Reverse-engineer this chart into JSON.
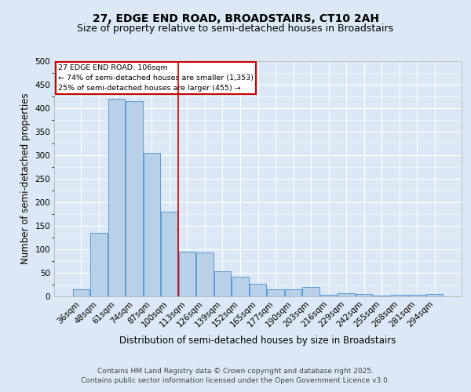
{
  "title": "27, EDGE END ROAD, BROADSTAIRS, CT10 2AH",
  "subtitle": "Size of property relative to semi-detached houses in Broadstairs",
  "xlabel": "Distribution of semi-detached houses by size in Broadstairs",
  "ylabel": "Number of semi-detached properties",
  "categories": [
    "36sqm",
    "48sqm",
    "61sqm",
    "74sqm",
    "87sqm",
    "100sqm",
    "113sqm",
    "126sqm",
    "139sqm",
    "152sqm",
    "165sqm",
    "177sqm",
    "190sqm",
    "203sqm",
    "216sqm",
    "229sqm",
    "242sqm",
    "255sqm",
    "268sqm",
    "281sqm",
    "294sqm"
  ],
  "values": [
    15,
    135,
    420,
    415,
    305,
    180,
    95,
    93,
    53,
    41,
    26,
    15,
    15,
    20,
    3,
    6,
    5,
    1,
    3,
    3,
    4
  ],
  "bar_color": "#b8d0e8",
  "bar_edge_color": "#5b9bd5",
  "annotation_line_color": "#cc0000",
  "annotation_box_text": "27 EDGE END ROAD: 106sqm\n← 74% of semi-detached houses are smaller (1,353)\n25% of semi-detached houses are larger (455) →",
  "annotation_box_color": "#cc0000",
  "footer": "Contains HM Land Registry data © Crown copyright and database right 2025.\nContains public sector information licensed under the Open Government Licence v3.0.",
  "ylim": [
    0,
    500
  ],
  "bg_color": "#dce8f5",
  "title_fontsize": 10,
  "subtitle_fontsize": 9,
  "xlabel_fontsize": 8.5,
  "ylabel_fontsize": 8.5,
  "tick_fontsize": 7.5,
  "footer_fontsize": 6.5,
  "prop_line_index": 6
}
